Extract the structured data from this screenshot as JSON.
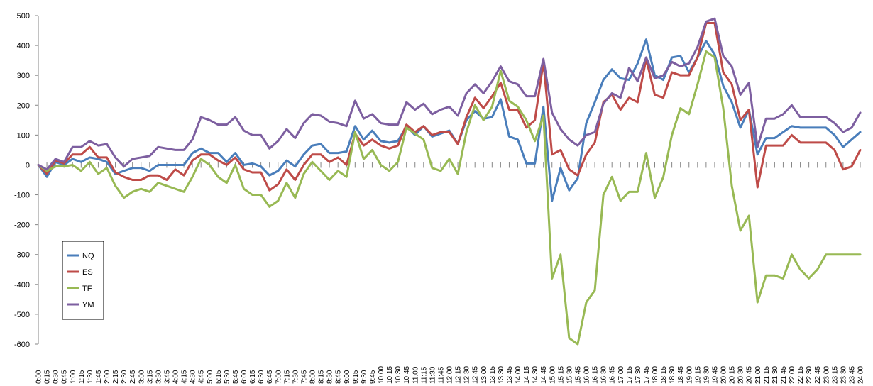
{
  "chart_data": {
    "type": "line",
    "title": "",
    "xlabel": "",
    "ylabel": "",
    "ylim": [
      -600,
      500
    ],
    "yticks": [
      -600,
      -500,
      -400,
      -300,
      -200,
      -100,
      0,
      100,
      200,
      300,
      400,
      500
    ],
    "grid": false,
    "legend": "left-lower",
    "x": [
      "0:00",
      "0:15",
      "0:30",
      "0:45",
      "1:00",
      "1:15",
      "1:30",
      "1:45",
      "2:00",
      "2:15",
      "2:30",
      "2:45",
      "3:00",
      "3:15",
      "3:30",
      "3:45",
      "4:00",
      "4:15",
      "4:30",
      "4:45",
      "5:00",
      "5:15",
      "5:30",
      "5:45",
      "6:00",
      "6:15",
      "6:30",
      "6:45",
      "7:00",
      "7:15",
      "7:30",
      "7:45",
      "8:00",
      "8:15",
      "8:30",
      "8:45",
      "9:00",
      "9:15",
      "9:30",
      "9:45",
      "10:00",
      "10:15",
      "10:30",
      "10:45",
      "11:00",
      "11:15",
      "11:30",
      "11:45",
      "12:00",
      "12:15",
      "12:30",
      "12:45",
      "13:00",
      "13:15",
      "13:30",
      "13:45",
      "14:00",
      "14:15",
      "14:30",
      "14:45",
      "15:00",
      "15:15",
      "15:30",
      "15:45",
      "16:00",
      "16:15",
      "16:30",
      "16:45",
      "17:00",
      "17:15",
      "17:30",
      "17:45",
      "18:00",
      "18:15",
      "18:30",
      "18:45",
      "19:00",
      "19:15",
      "19:30",
      "19:45",
      "20:00",
      "20:15",
      "20:30",
      "20:45",
      "21:00",
      "21:15",
      "21:30",
      "21:45",
      "22:00",
      "22:15",
      "22:30",
      "22:45",
      "23:00",
      "23:15",
      "23:30",
      "23:45",
      "24:00"
    ],
    "series": [
      {
        "name": "NQ",
        "color": "#4a7ebb",
        "values": [
          0,
          -40,
          10,
          0,
          20,
          10,
          25,
          20,
          10,
          -30,
          -20,
          -10,
          -10,
          -20,
          0,
          0,
          0,
          0,
          40,
          55,
          40,
          40,
          10,
          40,
          0,
          5,
          -5,
          -35,
          -20,
          15,
          -5,
          35,
          65,
          70,
          40,
          40,
          45,
          130,
          85,
          115,
          80,
          75,
          80,
          130,
          100,
          130,
          95,
          105,
          115,
          70,
          150,
          180,
          155,
          160,
          220,
          95,
          85,
          5,
          5,
          195,
          -120,
          -10,
          -85,
          -45,
          140,
          210,
          285,
          320,
          290,
          285,
          340,
          420,
          300,
          285,
          360,
          365,
          310,
          360,
          415,
          370,
          265,
          210,
          125,
          185,
          35,
          90,
          90,
          110,
          130,
          125,
          125,
          125,
          125,
          100,
          60,
          85,
          110
        ]
      },
      {
        "name": "ES",
        "color": "#be4b48",
        "values": [
          0,
          -30,
          15,
          5,
          35,
          35,
          60,
          25,
          25,
          -25,
          -40,
          -50,
          -50,
          -35,
          -35,
          -50,
          -15,
          -35,
          15,
          35,
          35,
          15,
          0,
          25,
          -15,
          -25,
          -25,
          -85,
          -65,
          -15,
          -50,
          0,
          35,
          35,
          10,
          25,
          0,
          105,
          65,
          85,
          65,
          55,
          65,
          135,
          110,
          130,
          100,
          110,
          110,
          70,
          160,
          225,
          190,
          230,
          275,
          185,
          185,
          125,
          150,
          345,
          35,
          50,
          -15,
          -35,
          35,
          75,
          210,
          235,
          185,
          225,
          210,
          355,
          235,
          225,
          310,
          300,
          300,
          360,
          475,
          475,
          310,
          270,
          150,
          185,
          -75,
          65,
          65,
          65,
          100,
          75,
          75,
          75,
          75,
          50,
          -15,
          -5,
          50
        ]
      },
      {
        "name": "TF",
        "color": "#98b954",
        "values": [
          0,
          -20,
          -5,
          -5,
          0,
          -20,
          10,
          -30,
          -10,
          -70,
          -110,
          -90,
          -80,
          -90,
          -60,
          -70,
          -80,
          -90,
          -40,
          20,
          0,
          -40,
          -60,
          0,
          -80,
          -100,
          -100,
          -140,
          -120,
          -60,
          -110,
          -30,
          10,
          -20,
          -50,
          -20,
          -40,
          110,
          20,
          50,
          0,
          -20,
          10,
          125,
          105,
          85,
          -10,
          -20,
          20,
          -30,
          110,
          200,
          150,
          195,
          315,
          215,
          195,
          150,
          80,
          165,
          -380,
          -300,
          -580,
          -600,
          -460,
          -420,
          -100,
          -40,
          -120,
          -90,
          -90,
          40,
          -110,
          -40,
          100,
          190,
          170,
          270,
          380,
          360,
          190,
          -70,
          -220,
          -170,
          -460,
          -370,
          -370,
          -380,
          -300,
          -350,
          -380,
          -350,
          -300,
          -300,
          -300,
          -300,
          -300
        ]
      },
      {
        "name": "YM",
        "color": "#7d5fa0",
        "values": [
          0,
          -15,
          20,
          10,
          60,
          60,
          80,
          65,
          70,
          25,
          -5,
          20,
          25,
          30,
          60,
          55,
          50,
          50,
          85,
          160,
          150,
          135,
          135,
          160,
          115,
          100,
          100,
          55,
          80,
          120,
          90,
          140,
          170,
          165,
          145,
          140,
          130,
          215,
          155,
          170,
          140,
          135,
          135,
          210,
          185,
          205,
          170,
          185,
          195,
          165,
          240,
          270,
          240,
          280,
          330,
          280,
          270,
          230,
          230,
          355,
          175,
          120,
          85,
          65,
          100,
          110,
          205,
          240,
          225,
          325,
          280,
          360,
          290,
          300,
          345,
          330,
          340,
          395,
          480,
          490,
          365,
          330,
          235,
          275,
          60,
          155,
          155,
          170,
          200,
          160,
          160,
          160,
          160,
          140,
          110,
          125,
          175
        ]
      }
    ]
  }
}
